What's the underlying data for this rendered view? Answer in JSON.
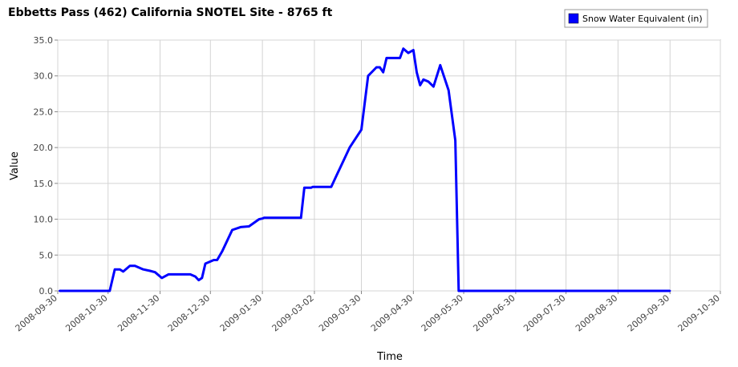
{
  "chart_data": {
    "type": "line",
    "title": "Ebbetts Pass (462) California SNOTEL Site - 8765 ft",
    "xlabel": "Time",
    "ylabel": "Value",
    "ylim": [
      0,
      35
    ],
    "yticks": [
      "0.0",
      "5.0",
      "10.0",
      "15.0",
      "20.0",
      "25.0",
      "30.0",
      "35.0"
    ],
    "xlim": [
      "2008-09-30",
      "2009-10-30"
    ],
    "xticks": [
      "2008-09-30",
      "2008-10-30",
      "2008-11-30",
      "2008-12-30",
      "2009-01-30",
      "2009-03-02",
      "2009-03-30",
      "2009-04-30",
      "2009-05-30",
      "2009-06-30",
      "2009-07-30",
      "2009-08-30",
      "2009-09-30",
      "2009-10-30"
    ],
    "grid": true,
    "legend_position": "top-right",
    "series": [
      {
        "name": "Snow Water Equivalent (in)",
        "color": "#0000ff",
        "x": [
          "2008-10-01",
          "2008-10-31",
          "2008-11-03",
          "2008-11-06",
          "2008-11-08",
          "2008-11-12",
          "2008-11-15",
          "2008-11-20",
          "2008-11-24",
          "2008-11-27",
          "2008-12-01",
          "2008-12-05",
          "2008-12-10",
          "2008-12-13",
          "2008-12-16",
          "2008-12-18",
          "2008-12-21",
          "2008-12-23",
          "2008-12-25",
          "2008-12-27",
          "2009-01-01",
          "2009-01-03",
          "2009-01-06",
          "2009-01-12",
          "2009-01-17",
          "2009-01-22",
          "2009-01-28",
          "2009-01-30",
          "2009-01-31",
          "2009-02-07",
          "2009-02-12",
          "2009-02-14",
          "2009-02-18",
          "2009-02-22",
          "2009-02-24",
          "2009-02-28",
          "2009-03-01",
          "2009-03-04",
          "2009-03-06",
          "2009-03-09",
          "2009-03-12",
          "2009-03-16",
          "2009-03-17",
          "2009-03-23",
          "2009-03-30",
          "2009-04-03",
          "2009-04-08",
          "2009-04-10",
          "2009-04-12",
          "2009-04-14",
          "2009-04-17",
          "2009-04-22",
          "2009-04-24",
          "2009-04-27",
          "2009-04-30",
          "2009-05-02",
          "2009-05-04",
          "2009-05-06",
          "2009-05-09",
          "2009-05-12",
          "2009-05-16",
          "2009-05-21",
          "2009-05-25",
          "2009-05-27",
          "2009-06-15",
          "2009-07-30",
          "2009-08-30",
          "2009-09-30"
        ],
        "values": [
          0.0,
          0.0,
          3.0,
          3.0,
          2.7,
          3.5,
          3.5,
          3.0,
          2.8,
          2.6,
          1.8,
          2.3,
          2.3,
          2.3,
          2.3,
          2.3,
          2.0,
          1.5,
          1.8,
          3.8,
          4.3,
          4.3,
          5.5,
          8.5,
          8.9,
          9.0,
          10.0,
          10.1,
          10.2,
          10.2,
          10.2,
          10.2,
          10.2,
          10.2,
          14.4,
          14.4,
          14.5,
          14.5,
          14.5,
          14.5,
          14.5,
          16.5,
          17.0,
          20.0,
          22.5,
          30.0,
          31.2,
          31.2,
          30.5,
          32.5,
          32.5,
          32.5,
          33.8,
          33.2,
          33.6,
          30.5,
          28.7,
          29.5,
          29.2,
          28.5,
          31.5,
          28.0,
          21.0,
          0.0,
          0.0,
          0.0,
          0.0,
          0.0
        ]
      }
    ]
  }
}
